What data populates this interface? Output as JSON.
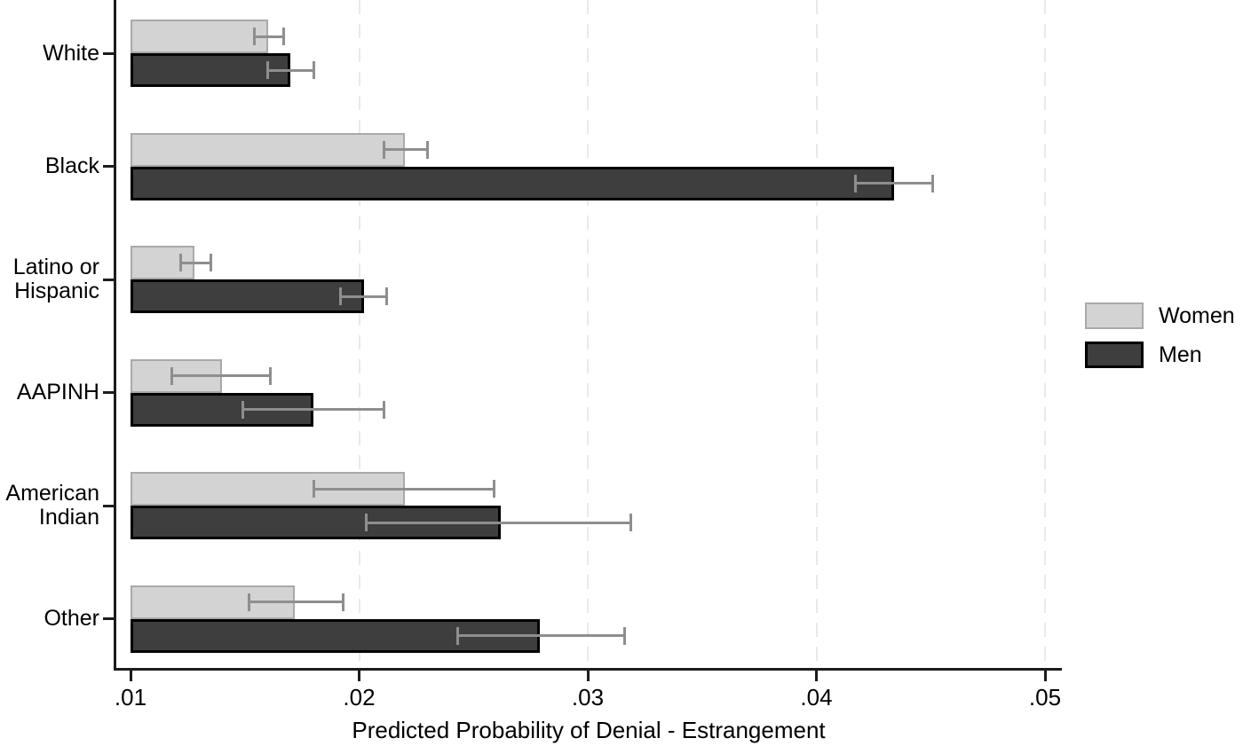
{
  "chart_data": {
    "type": "bar",
    "orientation": "horizontal",
    "xlabel": "Predicted Probability of Denial - Estrangement",
    "xlim": [
      0.01,
      0.05
    ],
    "bar_base": 0.01,
    "x_ticks": [
      ".01",
      ".02",
      ".03",
      ".04",
      ".05"
    ],
    "x_tick_values": [
      0.01,
      0.02,
      0.03,
      0.04,
      0.05
    ],
    "grid": {
      "vertical_dashed_at": [
        0.02,
        0.03,
        0.04,
        0.05
      ],
      "color": "#e9e9e9"
    },
    "categories": [
      "White",
      "Black",
      "Latino or Hispanic",
      "AAPINH",
      "American Indian",
      "Other"
    ],
    "category_label_lines": [
      [
        "White"
      ],
      [
        "Black"
      ],
      [
        "Latino or",
        "Hispanic"
      ],
      [
        "AAPINH"
      ],
      [
        "American",
        "Indian"
      ],
      [
        "Other"
      ]
    ],
    "series": [
      {
        "name": "Women",
        "fill_color": "#d3d3d3",
        "border_color": "#a9a9a9",
        "values": [
          0.016,
          0.022,
          0.0128,
          0.014,
          0.022,
          0.0172
        ],
        "ci_low": [
          0.0154,
          0.0211,
          0.0122,
          0.0118,
          0.018,
          0.0152
        ],
        "ci_high": [
          0.0167,
          0.023,
          0.0135,
          0.0161,
          0.0259,
          0.0193
        ]
      },
      {
        "name": "Men",
        "fill_color": "#3e3e3e",
        "border_color": "#000000",
        "values": [
          0.017,
          0.0434,
          0.0202,
          0.018,
          0.0262,
          0.0279
        ],
        "ci_low": [
          0.016,
          0.0417,
          0.0192,
          0.0149,
          0.0203,
          0.0243
        ],
        "ci_high": [
          0.018,
          0.0451,
          0.0212,
          0.0211,
          0.0319,
          0.0316
        ]
      }
    ],
    "error_bar_color": "#8e8e8e",
    "legend": {
      "position": "right",
      "entries": [
        "Women",
        "Men"
      ]
    }
  }
}
